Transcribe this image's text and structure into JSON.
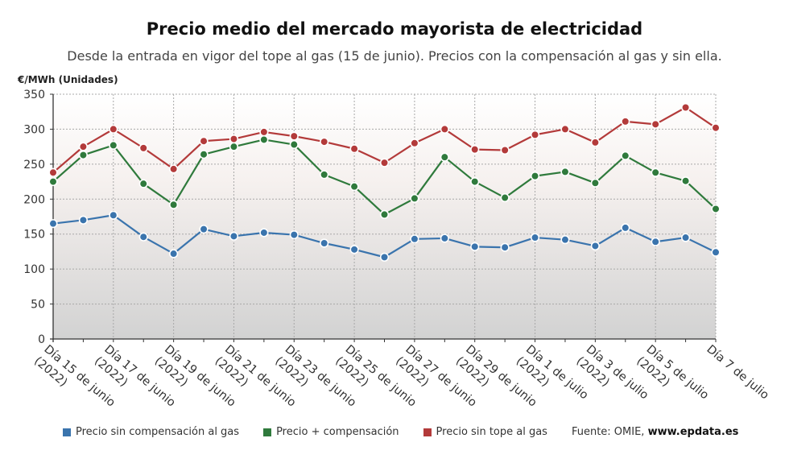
{
  "header": {
    "title": "Precio medio del mercado mayorista de electricidad",
    "subtitle": "Desde la entrada en vigor del tope al gas (15 de junio). Precios con la compensación al gas y sin ella.",
    "y_unit": "€/MWh (Unidades)"
  },
  "footer": {
    "source_prefix": "Fuente: OMIE, ",
    "source_site": "www.epdata.es"
  },
  "chart_data": {
    "type": "line",
    "ylabel": "€/MWh (Unidades)",
    "ylim": [
      0,
      350
    ],
    "yticks": [
      "0",
      "50",
      "100",
      "150",
      "200",
      "250",
      "300",
      "350"
    ],
    "grid": true,
    "legend_position": "bottom",
    "x": [
      "15 jun",
      "16 jun",
      "17 jun",
      "18 jun",
      "19 jun",
      "20 jun",
      "21 jun",
      "22 jun",
      "23 jun",
      "24 jun",
      "25 jun",
      "26 jun",
      "27 jun",
      "28 jun",
      "29 jun",
      "30 jun",
      "1 jul",
      "2 jul",
      "3 jul",
      "4 jul",
      "5 jul",
      "6 jul",
      "7 jul"
    ],
    "tick_labels": [
      {
        "index": 0,
        "line1": "Día 15 de junio",
        "line2": "(2022)"
      },
      {
        "index": 2,
        "line1": "Día 17 de junio",
        "line2": "(2022)"
      },
      {
        "index": 4,
        "line1": "Día 19 de junio",
        "line2": "(2022)"
      },
      {
        "index": 6,
        "line1": "Día 21 de junio",
        "line2": "(2022)"
      },
      {
        "index": 8,
        "line1": "Día 23 de junio",
        "line2": "(2022)"
      },
      {
        "index": 10,
        "line1": "Día 25 de junio",
        "line2": "(2022)"
      },
      {
        "index": 12,
        "line1": "Día 27 de junio",
        "line2": "(2022)"
      },
      {
        "index": 14,
        "line1": "Día 29 de junio",
        "line2": "(2022)"
      },
      {
        "index": 16,
        "line1": "Día 1 de julio",
        "line2": "(2022)"
      },
      {
        "index": 18,
        "line1": "Día 3 de julio",
        "line2": "(2022)"
      },
      {
        "index": 20,
        "line1": "Día 5 de julio",
        "line2": "(2022)"
      },
      {
        "index": 22,
        "line1": "Día 7 de julio",
        "line2": ""
      }
    ],
    "series": [
      {
        "name": "Precio sin compensación al gas",
        "color": "#3a74ad",
        "values": [
          165,
          170,
          177,
          146,
          122,
          157,
          147,
          152,
          149,
          137,
          128,
          117,
          143,
          144,
          132,
          131,
          145,
          142,
          133,
          159,
          139,
          145,
          124
        ]
      },
      {
        "name": "Precio + compensación",
        "color": "#2f7a3c",
        "values": [
          225,
          263,
          277,
          222,
          192,
          264,
          275,
          285,
          278,
          235,
          218,
          178,
          201,
          260,
          225,
          202,
          233,
          239,
          223,
          262,
          238,
          226,
          186
        ]
      },
      {
        "name": "Precio sin tope al gas",
        "color": "#b33a3a",
        "values": [
          238,
          275,
          300,
          273,
          243,
          283,
          286,
          296,
          290,
          282,
          272,
          252,
          280,
          300,
          271,
          270,
          292,
          300,
          281,
          311,
          307,
          331,
          302
        ]
      }
    ]
  }
}
